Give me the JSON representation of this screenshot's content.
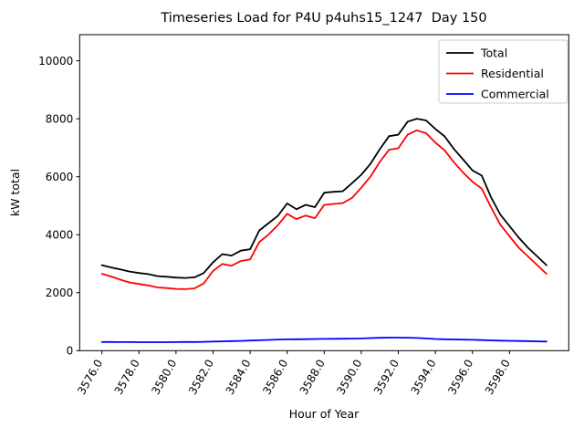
{
  "chart_data": {
    "type": "line",
    "title": "Timeseries Load for P4U p4uhs15_1247  Day 150",
    "xlabel": "Hour of Year",
    "ylabel": "kW total",
    "grid": false,
    "legend_position": "upper right",
    "xlim": [
      3574.8,
      3601.2
    ],
    "ylim": [
      0,
      10900
    ],
    "xticks": {
      "values": [
        3576,
        3578,
        3580,
        3582,
        3584,
        3586,
        3588,
        3590,
        3592,
        3594,
        3596,
        3598
      ],
      "labels": [
        "3576.0",
        "3578.0",
        "3580.0",
        "3582.0",
        "3584.0",
        "3586.0",
        "3588.0",
        "3590.0",
        "3592.0",
        "3594.0",
        "3596.0",
        "3598.0"
      ]
    },
    "yticks": {
      "values": [
        0,
        2000,
        4000,
        6000,
        8000,
        10000
      ],
      "labels": [
        "0",
        "2000",
        "4000",
        "6000",
        "8000",
        "10000"
      ]
    },
    "x": [
      3576,
      3576.5,
      3577,
      3577.5,
      3578,
      3578.5,
      3579,
      3579.5,
      3580,
      3580.5,
      3581,
      3581.5,
      3582,
      3582.5,
      3583,
      3583.5,
      3584,
      3584.5,
      3585,
      3585.5,
      3586,
      3586.5,
      3587,
      3587.5,
      3588,
      3588.5,
      3589,
      3589.5,
      3590,
      3590.5,
      3591,
      3591.5,
      3592,
      3592.5,
      3593,
      3593.5,
      3594,
      3594.5,
      3595,
      3595.5,
      3596,
      3596.5,
      3597,
      3597.5,
      3598,
      3598.5,
      3599,
      3599.5,
      3600
    ],
    "series": [
      {
        "name": "Total",
        "color": "#000000",
        "values": [
          2950,
          2870,
          2800,
          2730,
          2680,
          2640,
          2570,
          2550,
          2520,
          2510,
          2530,
          2680,
          3050,
          3330,
          3280,
          3450,
          3500,
          4150,
          4400,
          4650,
          5080,
          4880,
          5030,
          4950,
          5450,
          5480,
          5500,
          5780,
          6070,
          6450,
          6950,
          7400,
          7450,
          7900,
          8000,
          7940,
          7650,
          7390,
          6960,
          6590,
          6220,
          6040,
          5300,
          4700,
          4300,
          3900,
          3550,
          3250,
          2950
        ]
      },
      {
        "name": "Residential",
        "color": "#ff0000",
        "values": [
          2650,
          2560,
          2450,
          2350,
          2300,
          2250,
          2180,
          2160,
          2130,
          2120,
          2150,
          2320,
          2750,
          2990,
          2930,
          3090,
          3150,
          3750,
          4010,
          4330,
          4720,
          4540,
          4660,
          4570,
          5030,
          5060,
          5090,
          5270,
          5620,
          6010,
          6510,
          6930,
          6980,
          7450,
          7600,
          7500,
          7180,
          6910,
          6500,
          6140,
          5830,
          5590,
          4950,
          4350,
          3950,
          3550,
          3250,
          2950,
          2650
        ]
      },
      {
        "name": "Commercial",
        "color": "#0000ff",
        "values": [
          300,
          298,
          296,
          295,
          293,
          292,
          292,
          293,
          295,
          298,
          300,
          305,
          315,
          322,
          330,
          338,
          348,
          358,
          372,
          383,
          390,
          394,
          398,
          402,
          406,
          408,
          411,
          415,
          421,
          433,
          443,
          450,
          450,
          446,
          436,
          421,
          402,
          392,
          386,
          380,
          375,
          366,
          356,
          346,
          340,
          334,
          329,
          321,
          315
        ]
      }
    ]
  }
}
